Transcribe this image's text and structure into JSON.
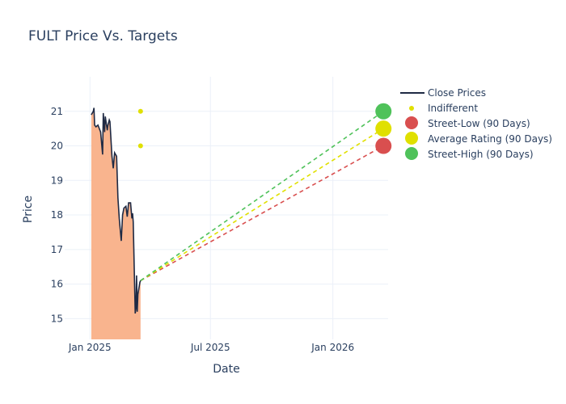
{
  "chart_data": {
    "type": "line",
    "title": "FULT Price Vs. Targets",
    "xlabel": "Date",
    "ylabel": "Price",
    "x_ticks": [
      "Jan 2025",
      "Jul 2025",
      "Jan 2026"
    ],
    "y_ticks": [
      "15",
      "16",
      "17",
      "18",
      "19",
      "20",
      "21"
    ],
    "ylim": [
      14.4,
      22.0
    ],
    "xlim": [
      "2024-11-24",
      "2026-03-25"
    ],
    "grid": true,
    "legend_position": "top-right",
    "colors": {
      "close": "#1f2a44",
      "fill": "#f9b48e",
      "indifferent": "#e0e000",
      "low": "#d94f4f",
      "avg": "#e0e000",
      "high": "#4fc25a"
    },
    "series": [
      {
        "name": "Close Prices",
        "points": [
          [
            "2025-01-03",
            20.9
          ],
          [
            "2025-01-06",
            21.0
          ],
          [
            "2025-01-07",
            21.1
          ],
          [
            "2025-01-08",
            20.6
          ],
          [
            "2025-01-10",
            20.55
          ],
          [
            "2025-01-13",
            20.6
          ],
          [
            "2025-01-15",
            20.5
          ],
          [
            "2025-01-17",
            20.4
          ],
          [
            "2025-01-20",
            19.75
          ],
          [
            "2025-01-21",
            20.95
          ],
          [
            "2025-01-23",
            20.4
          ],
          [
            "2025-01-24",
            20.85
          ],
          [
            "2025-01-27",
            20.45
          ],
          [
            "2025-01-28",
            20.6
          ],
          [
            "2025-01-30",
            20.75
          ],
          [
            "2025-01-31",
            20.7
          ],
          [
            "2025-02-03",
            19.7
          ],
          [
            "2025-02-05",
            19.35
          ],
          [
            "2025-02-07",
            19.8
          ],
          [
            "2025-02-10",
            19.7
          ],
          [
            "2025-02-12",
            18.5
          ],
          [
            "2025-02-14",
            17.9
          ],
          [
            "2025-02-17",
            17.25
          ],
          [
            "2025-02-19",
            18.0
          ],
          [
            "2025-02-21",
            18.2
          ],
          [
            "2025-02-24",
            18.25
          ],
          [
            "2025-02-26",
            17.95
          ],
          [
            "2025-02-28",
            18.35
          ],
          [
            "2025-03-03",
            18.35
          ],
          [
            "2025-03-05",
            17.9
          ],
          [
            "2025-03-06",
            18.05
          ],
          [
            "2025-03-07",
            17.8
          ],
          [
            "2025-03-10",
            15.15
          ],
          [
            "2025-03-11",
            15.3
          ],
          [
            "2025-03-12",
            16.25
          ],
          [
            "2025-03-13",
            15.2
          ],
          [
            "2025-03-14",
            15.7
          ],
          [
            "2025-03-17",
            16.05
          ],
          [
            "2025-03-18",
            16.1
          ]
        ]
      },
      {
        "name": "Indifferent",
        "points": [
          [
            "2025-03-18",
            21.0
          ],
          [
            "2025-03-18",
            20.0
          ]
        ]
      },
      {
        "name": "Street-Low (90 Days)",
        "start": [
          "2025-03-18",
          16.1
        ],
        "end": [
          "2026-03-18",
          20.0
        ]
      },
      {
        "name": "Average Rating (90 Days)",
        "start": [
          "2025-03-18",
          16.1
        ],
        "end": [
          "2026-03-18",
          20.5
        ]
      },
      {
        "name": "Street-High (90 Days)",
        "start": [
          "2025-03-18",
          16.1
        ],
        "end": [
          "2026-03-18",
          21.0
        ]
      }
    ]
  }
}
